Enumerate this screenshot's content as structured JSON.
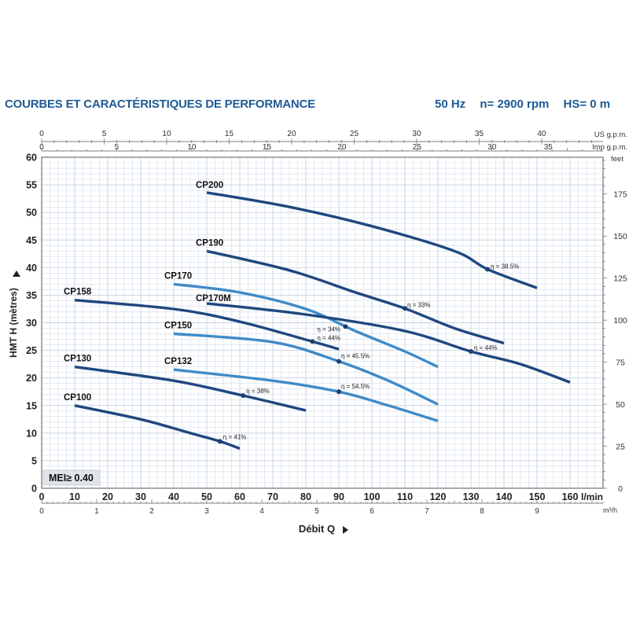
{
  "header": {
    "title": "COURBES ET CARACTÉRISTIQUES DE PERFORMANCE",
    "frequency": "50 Hz",
    "speed": "n= 2900 rpm",
    "suction": "HS= 0 m"
  },
  "colors": {
    "dark": "#1f477f",
    "light": "#3f8bc8",
    "grid": "#c5d2e2",
    "title": "#1f5a96"
  },
  "chart_data": {
    "type": "line",
    "xlabel": "Débit Q",
    "ylabel": "HMT H (mètres)",
    "xlim": [
      0,
      170
    ],
    "ylim": [
      0,
      60
    ],
    "x_unit_main": "l/min",
    "x_unit_m3h": "m³/h",
    "x_unit_us": "US g.p.m.",
    "x_unit_imp": "Imp g.p.m.",
    "y_unit_right": "feet",
    "x_ticks_main": [
      0,
      10,
      20,
      30,
      40,
      50,
      60,
      70,
      80,
      90,
      100,
      110,
      120,
      130,
      140,
      150,
      160
    ],
    "x_tick_labels_main": [
      "0",
      "10",
      "20",
      "30",
      "40",
      "50",
      "60",
      "70",
      "80",
      "90",
      "100",
      "110",
      "120",
      "130",
      "140",
      "150",
      "160"
    ],
    "x_ticks_m3h": [
      0,
      1,
      2,
      3,
      4,
      5,
      6,
      7,
      8,
      9
    ],
    "x_tick_labels_m3h": [
      "0",
      "1",
      "2",
      "3",
      "4",
      "5",
      "6",
      "7",
      "8",
      "9"
    ],
    "x_ticks_us": [
      0,
      5,
      10,
      15,
      20,
      25,
      30,
      35,
      40
    ],
    "x_tick_labels_us": [
      "0",
      "5",
      "10",
      "15",
      "20",
      "25",
      "30",
      "35",
      "40"
    ],
    "x_ticks_imp": [
      0,
      5,
      10,
      15,
      20,
      25,
      30,
      35
    ],
    "x_tick_labels_imp": [
      "0",
      "5",
      "10",
      "15",
      "20",
      "25",
      "30",
      "35"
    ],
    "y_ticks": [
      0,
      5,
      10,
      15,
      20,
      25,
      30,
      35,
      40,
      45,
      50,
      55,
      60
    ],
    "y_tick_labels": [
      "0",
      "5",
      "10",
      "15",
      "20",
      "25",
      "30",
      "35",
      "40",
      "45",
      "50",
      "55",
      "60"
    ],
    "y_ticks_feet": [
      0,
      25,
      50,
      75,
      100,
      125,
      150,
      175
    ],
    "y_tick_labels_feet": [
      "0",
      "25",
      "50",
      "75",
      "100",
      "125",
      "150",
      "175"
    ],
    "badge": "MEI≥ 0.40",
    "series": [
      {
        "name": "CP200",
        "tone": "dark",
        "points": [
          [
            50,
            53.6
          ],
          [
            75,
            51
          ],
          [
            100,
            47.5
          ],
          [
            125,
            43
          ],
          [
            135,
            39.7
          ],
          [
            150,
            36.3
          ]
        ],
        "eff": {
          "x": 135,
          "y": 39.7,
          "label": "η = 38.5%"
        }
      },
      {
        "name": "CP190",
        "tone": "dark",
        "points": [
          [
            50,
            43
          ],
          [
            75,
            39.5
          ],
          [
            95,
            35.5
          ],
          [
            110,
            32.6
          ],
          [
            125,
            29
          ],
          [
            140,
            26.3
          ]
        ],
        "eff": {
          "x": 110,
          "y": 32.6,
          "label": "η = 33%"
        }
      },
      {
        "name": "CP170",
        "tone": "light",
        "points": [
          [
            40,
            37
          ],
          [
            60,
            35.5
          ],
          [
            80,
            32.5
          ],
          [
            95,
            28.5
          ],
          [
            110,
            24.8
          ],
          [
            120,
            22
          ]
        ],
        "eff": {
          "x": 92,
          "y": 29.3,
          "label": "η = 34%"
        }
      },
      {
        "name": "CP170M",
        "tone": "dark",
        "points": [
          [
            50,
            33.5
          ],
          [
            80,
            31.5
          ],
          [
            110,
            28.5
          ],
          [
            130,
            24.8
          ],
          [
            145,
            22.5
          ],
          [
            160,
            19.2
          ]
        ],
        "eff": {
          "x": 130,
          "y": 24.8,
          "label": "η = 44%"
        }
      },
      {
        "name": "CP158",
        "tone": "dark",
        "points": [
          [
            10,
            34.1
          ],
          [
            40,
            32.5
          ],
          [
            60,
            30.2
          ],
          [
            82,
            26.6
          ],
          [
            90,
            25.2
          ]
        ],
        "eff": {
          "x": 82,
          "y": 26.6,
          "label": "η = 44%"
        }
      },
      {
        "name": "CP150",
        "tone": "light",
        "points": [
          [
            40,
            28
          ],
          [
            70,
            26.5
          ],
          [
            90,
            23
          ],
          [
            105,
            19.5
          ],
          [
            120,
            15.2
          ]
        ],
        "eff": {
          "x": 90,
          "y": 23,
          "label": "η = 45.5%"
        }
      },
      {
        "name": "CP132",
        "tone": "light",
        "points": [
          [
            40,
            21.5
          ],
          [
            70,
            19.5
          ],
          [
            90,
            17.5
          ],
          [
            105,
            15
          ],
          [
            120,
            12.2
          ]
        ],
        "eff": {
          "x": 90,
          "y": 17.5,
          "label": "η = 54.5%"
        }
      },
      {
        "name": "CP130",
        "tone": "dark",
        "points": [
          [
            10,
            22
          ],
          [
            40,
            19.5
          ],
          [
            61,
            16.8
          ],
          [
            80,
            14.1
          ]
        ],
        "eff": {
          "x": 61,
          "y": 16.8,
          "label": "η = 38%"
        }
      },
      {
        "name": "CP100",
        "tone": "dark",
        "points": [
          [
            10,
            15
          ],
          [
            30,
            12.5
          ],
          [
            45,
            10
          ],
          [
            54,
            8.5
          ],
          [
            60,
            7.2
          ]
        ],
        "eff": {
          "x": 54,
          "y": 8.5,
          "label": "η = 41%"
        }
      }
    ]
  }
}
